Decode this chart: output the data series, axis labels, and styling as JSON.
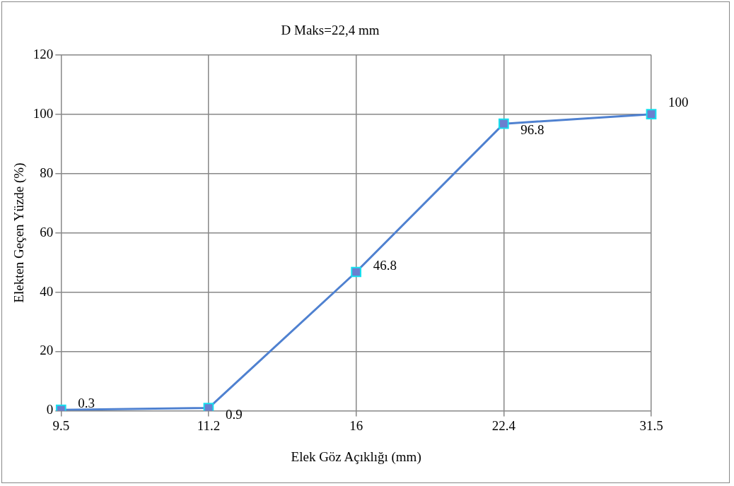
{
  "chart_data": {
    "type": "line",
    "title": "D Maks=22,4 mm",
    "xlabel": "Elek Göz Açıklığı (mm)",
    "ylabel": "Elekten Geçen Yüzde (%)",
    "categories": [
      "9.5",
      "11.2",
      "16",
      "22.4",
      "31.5"
    ],
    "series": [
      {
        "color": "#4f81d0",
        "values": [
          0.3,
          0.9,
          46.8,
          96.8,
          100
        ]
      }
    ],
    "ylim": [
      0,
      120
    ],
    "yticks": [
      0,
      20,
      40,
      60,
      80,
      100,
      120
    ],
    "grid": true,
    "legend": false,
    "marker": "square",
    "line_style": "solid",
    "data_labels": true
  }
}
